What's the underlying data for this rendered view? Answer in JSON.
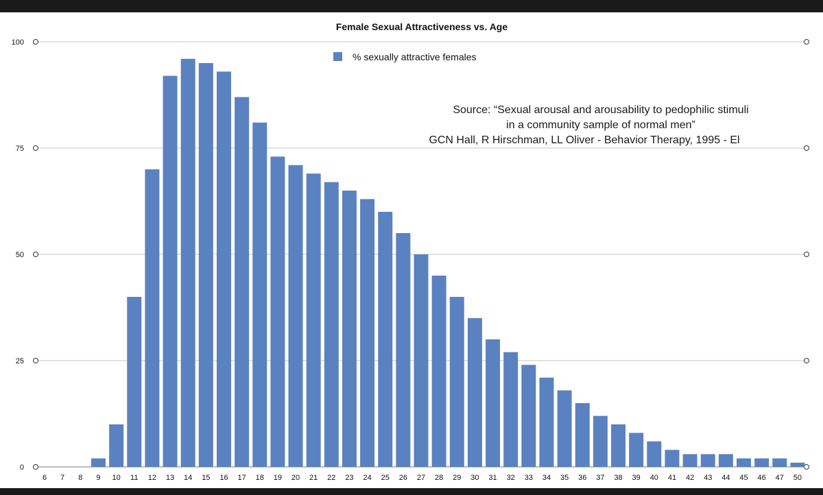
{
  "chart_data": {
    "type": "bar",
    "title": "Female Sexual Attractiveness vs. Age",
    "xlabel": "",
    "ylabel": "",
    "ylim": [
      0,
      100
    ],
    "yticks": [
      0,
      25,
      50,
      75,
      100
    ],
    "grid": true,
    "legend_position": "top-center",
    "categories": [
      "6",
      "7",
      "8",
      "9",
      "10",
      "11",
      "12",
      "13",
      "14",
      "15",
      "16",
      "17",
      "18",
      "19",
      "20",
      "21",
      "22",
      "23",
      "24",
      "25",
      "26",
      "27",
      "28",
      "29",
      "30",
      "31",
      "32",
      "33",
      "34",
      "35",
      "36",
      "37",
      "38",
      "39",
      "40",
      "41",
      "42",
      "43",
      "44",
      "45",
      "46",
      "47",
      "50"
    ],
    "series": [
      {
        "name": "% sexually attractive females",
        "color": "#5b82c0",
        "values": [
          0,
          0,
          0,
          2,
          10,
          40,
          70,
          92,
          96,
          95,
          93,
          87,
          81,
          73,
          71,
          69,
          67,
          65,
          63,
          60,
          55,
          50,
          45,
          40,
          35,
          30,
          27,
          24,
          21,
          18,
          15,
          12,
          10,
          8,
          6,
          4,
          3,
          3,
          3,
          2,
          2,
          2,
          1
        ]
      }
    ],
    "annotations": [
      "Source: “Sexual arousal and arousability to pedophilic stimuli",
      "in a community sample of normal men”",
      "GCN Hall, R Hirschman, LL Oliver - Behavior Therapy, 1995 - El"
    ]
  },
  "colors": {
    "bar": "#5b82c0",
    "grid": "#c4c4c4",
    "background": "#ffffff",
    "text": "#111111"
  }
}
